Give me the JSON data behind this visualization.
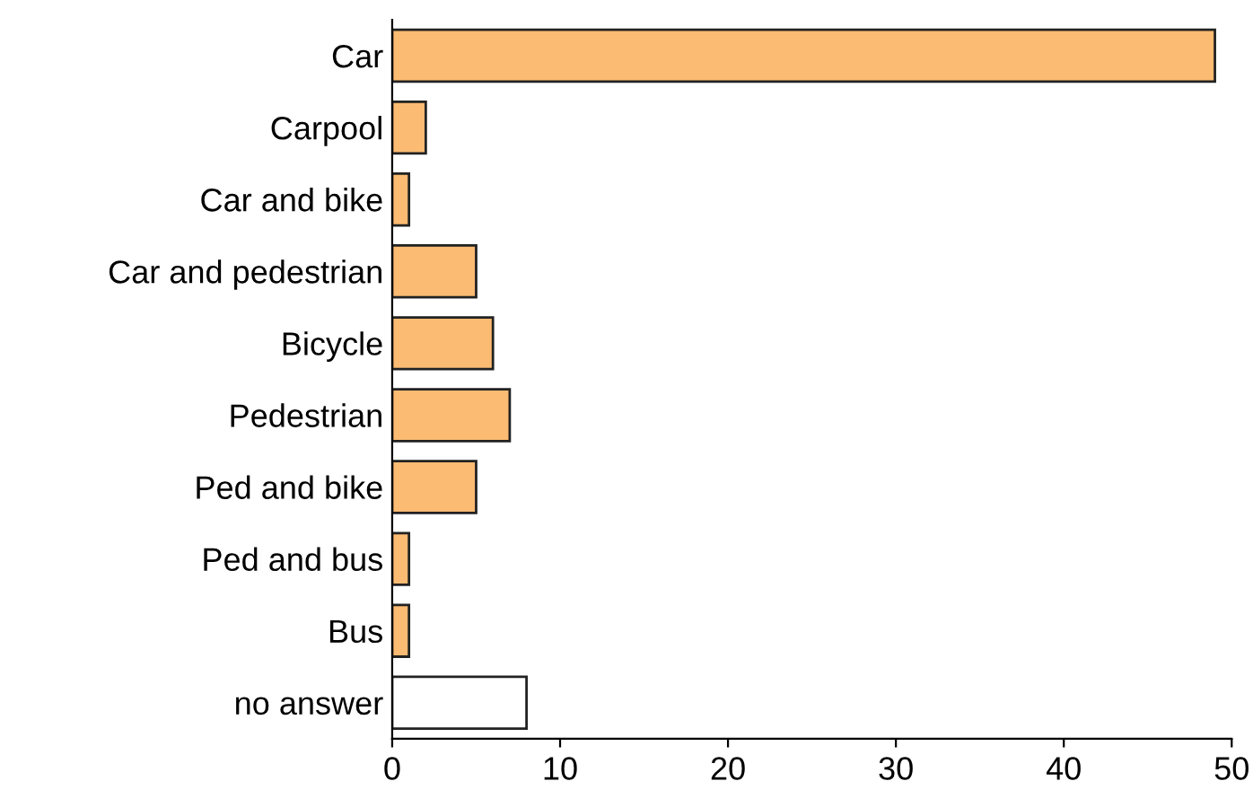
{
  "chart_data": {
    "type": "bar",
    "orientation": "horizontal",
    "categories": [
      "Car",
      "Carpool",
      "Car and bike",
      "Car and pedestrian",
      "Bicycle",
      "Pedestrian",
      "Ped and bike",
      "Ped and bus",
      "Bus",
      "no answer"
    ],
    "values": [
      49,
      2,
      1,
      5,
      6,
      7,
      5,
      1,
      1,
      8
    ],
    "colors": [
      "#fbbb72",
      "#fbbb72",
      "#fbbb72",
      "#fbbb72",
      "#fbbb72",
      "#fbbb72",
      "#fbbb72",
      "#fbbb72",
      "#fbbb72",
      "#ffffff"
    ],
    "xlim": [
      0,
      50
    ],
    "xticks": [
      0,
      10,
      20,
      30,
      40,
      50
    ],
    "grid": false,
    "legend": false
  }
}
